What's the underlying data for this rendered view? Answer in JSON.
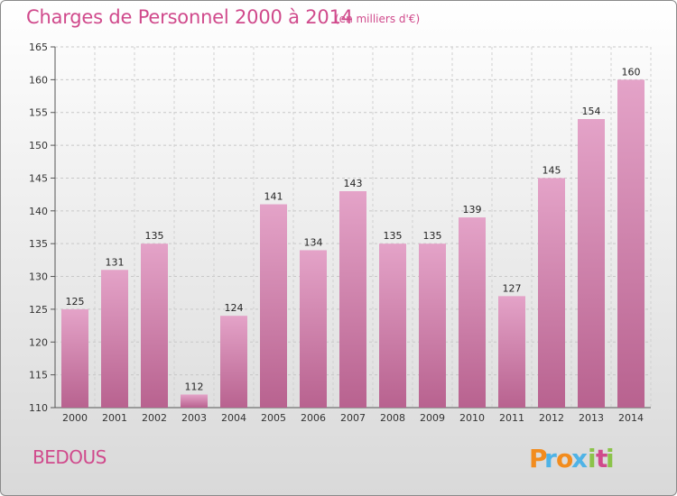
{
  "chart_data": {
    "type": "bar",
    "title": "Charges de Personnel 2000 à 2014",
    "subtitle": "(en milliers d'€)",
    "categories": [
      "2000",
      "2001",
      "2002",
      "2003",
      "2004",
      "2005",
      "2006",
      "2007",
      "2008",
      "2009",
      "2010",
      "2011",
      "2012",
      "2013",
      "2014"
    ],
    "values": [
      125,
      131,
      135,
      112,
      124,
      141,
      134,
      143,
      135,
      135,
      139,
      127,
      145,
      154,
      160
    ],
    "ylim": [
      110,
      165
    ],
    "yticks": [
      110,
      115,
      120,
      125,
      130,
      135,
      140,
      145,
      150,
      155,
      160,
      165
    ],
    "grid": true,
    "bar_color": "#d97fb1"
  },
  "footer": {
    "place": "BEDOUS"
  },
  "logo": {
    "letters": [
      "P",
      "r",
      "o",
      "x",
      "i",
      "t",
      "i"
    ],
    "colors": [
      "#f28c1e",
      "#4fb3e6",
      "#f28c1e",
      "#4fb3e6",
      "#8bc34a",
      "#d04a8c",
      "#8bc34a"
    ]
  }
}
